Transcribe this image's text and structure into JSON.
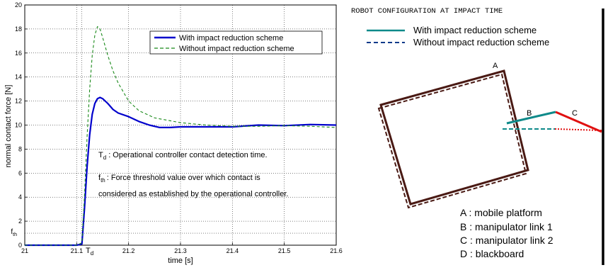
{
  "chart_data": {
    "type": "line",
    "title": "",
    "xlabel": "time [s]",
    "ylabel": "normal contact force [N]",
    "xlim": [
      21,
      21.6
    ],
    "ylim": [
      0,
      20
    ],
    "xticks": [
      "21",
      "21.1",
      "21.2",
      "21.3",
      "21.4",
      "21.5",
      "21.6"
    ],
    "yticks": [
      "0",
      "2",
      "4",
      "6",
      "8",
      "10",
      "12",
      "14",
      "16",
      "18",
      "20"
    ],
    "grid": true,
    "legend_position": "top-right",
    "extra_tick_labels": {
      "td": "T",
      "td_sub": "d",
      "fth": "f",
      "fth_sub": "th"
    },
    "markers": {
      "td_x": 21.11,
      "fth_y": 1.0
    },
    "series": [
      {
        "name": "With impact reduction scheme",
        "style": "solid",
        "color": "#0000cc",
        "x": [
          21,
          21.1,
          21.11,
          21.115,
          21.12,
          21.125,
          21.13,
          21.135,
          21.14,
          21.145,
          21.15,
          21.16,
          21.17,
          21.18,
          21.2,
          21.22,
          21.24,
          21.26,
          21.28,
          21.3,
          21.35,
          21.4,
          21.45,
          21.5,
          21.55,
          21.6
        ],
        "y": [
          0,
          0,
          0.1,
          3,
          6.5,
          9.2,
          10.9,
          11.8,
          12.2,
          12.3,
          12.2,
          11.8,
          11.3,
          11.0,
          10.7,
          10.3,
          10.0,
          9.8,
          9.8,
          9.85,
          9.85,
          9.85,
          10.0,
          9.95,
          10.05,
          10.0
        ]
      },
      {
        "name": "Without impact reduction scheme",
        "style": "dashed",
        "color": "#1a8a1a",
        "x": [
          21,
          21.1,
          21.11,
          21.115,
          21.12,
          21.125,
          21.13,
          21.135,
          21.14,
          21.145,
          21.15,
          21.16,
          21.17,
          21.18,
          21.2,
          21.22,
          21.25,
          21.3,
          21.35,
          21.4,
          21.45,
          21.5,
          21.55,
          21.6
        ],
        "y": [
          0,
          0,
          0.2,
          4,
          9,
          13,
          15.8,
          17.5,
          18.2,
          18.0,
          17.3,
          15.8,
          14.5,
          13.5,
          12.0,
          11.2,
          10.6,
          10.2,
          10.0,
          9.9,
          9.9,
          9.95,
          9.9,
          9.8
        ]
      }
    ],
    "annotations": [
      {
        "id": "td",
        "symbol": "T",
        "sub": "d",
        "text": ": Operational controller contact detection time."
      },
      {
        "id": "fth",
        "symbol": "f",
        "sub": "th",
        "text": ": Force threshold value over which contact is",
        "text2": "considered as established by the operational controller."
      }
    ]
  },
  "config": {
    "title": "ROBOT CONFIGURATION AT IMPACT TIME",
    "legend": [
      {
        "label": "With impact reduction scheme",
        "style": "solid",
        "color": "#0e8a8a"
      },
      {
        "label": "Without impact reduction scheme",
        "style": "dashed",
        "color": "#0a3a8a"
      }
    ],
    "labels": {
      "a": "A",
      "b": "B",
      "c": "C"
    },
    "key": [
      "A : mobile platform",
      "B : manipulator link 1",
      "C : manipulator link 2",
      "D : blackboard"
    ],
    "colors": {
      "platform": "#4a1a14",
      "link1_with": "#0e8a8a",
      "link1_without": "#0e8a8a",
      "link2": "#e01010",
      "board": "#000000"
    }
  }
}
